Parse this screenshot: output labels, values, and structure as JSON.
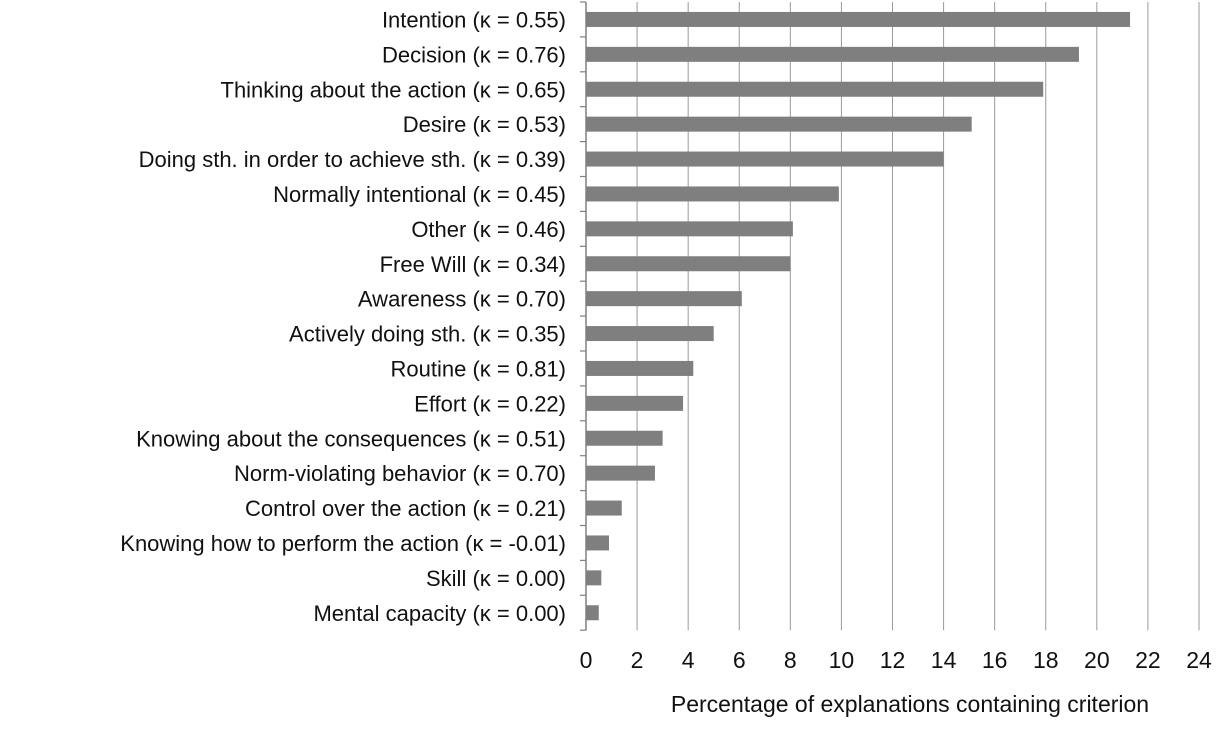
{
  "chart_data": {
    "type": "bar",
    "orientation": "horizontal",
    "categories": [
      "Intention (κ = 0.55)",
      "Decision (κ = 0.76)",
      "Thinking  about the action (κ = 0.65)",
      "Desire (κ = 0.53)",
      "Doing sth. in order to achieve sth. (κ = 0.39)",
      "Normally  intentional (κ = 0.45)",
      "Other (κ = 0.46)",
      "Free Will (κ = 0.34)",
      "Awareness (κ = 0.70)",
      "Actively doing sth. (κ = 0.35)",
      "Routine (κ = 0.81)",
      "Effort (κ = 0.22)",
      "Knowing about the consequences (κ = 0.51)",
      "Norm-violating behavior (κ = 0.70)",
      "Control over the action (κ = 0.21)",
      "Knowing how to perform the action (κ = -0.01)",
      "Skill (κ = 0.00)",
      "Mental capacity (κ = 0.00)"
    ],
    "values": [
      21.3,
      19.3,
      17.9,
      15.1,
      14.0,
      9.9,
      8.1,
      8.0,
      6.1,
      5.0,
      4.2,
      3.8,
      3.0,
      2.7,
      1.4,
      0.9,
      0.6,
      0.5
    ],
    "xlabel": "Percentage of explanations containing criterion",
    "ylabel": "",
    "xlim": [
      0,
      24
    ],
    "xticks": [
      0,
      2,
      4,
      6,
      8,
      10,
      12,
      14,
      16,
      18,
      20,
      22,
      24
    ],
    "xtick_labels": [
      "0",
      "2",
      "4",
      "6",
      "8",
      "10",
      "12",
      "14",
      "16",
      "18",
      "20",
      "22",
      "24"
    ],
    "grid": "vertical",
    "legend": "none",
    "bar_color": "#7f7f7f",
    "grid_color": "#9a9a9a",
    "axis_color": "#808080"
  }
}
